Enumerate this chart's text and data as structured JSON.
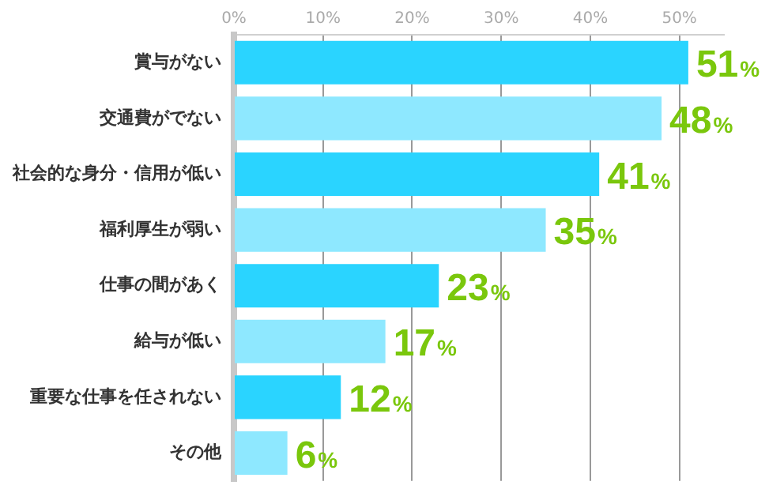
{
  "chart_data": {
    "type": "bar",
    "orientation": "horizontal",
    "categories": [
      "賞与がない",
      "交通費がでない",
      "社会的な身分・信用が低い",
      "福利厚生が弱い",
      "仕事の間があく",
      "給与が低い",
      "重要な仕事を任されない",
      "その他"
    ],
    "values": [
      51,
      48,
      41,
      35,
      23,
      17,
      12,
      6
    ],
    "colors": [
      "#2ad4ff",
      "#8ee8ff",
      "#2ad4ff",
      "#8ee8ff",
      "#2ad4ff",
      "#8ee8ff",
      "#2ad4ff",
      "#8ee8ff"
    ],
    "value_labels": [
      "51%",
      "48%",
      "41%",
      "35%",
      "23%",
      "17%",
      "12%",
      "6%"
    ],
    "xlim": [
      0,
      55
    ],
    "xticks": [
      {
        "value": 0,
        "label": "0%"
      },
      {
        "value": 10,
        "label": "10%"
      },
      {
        "value": 20,
        "label": "20%"
      },
      {
        "value": 30,
        "label": "30%"
      },
      {
        "value": 40,
        "label": "40%"
      },
      {
        "value": 50,
        "label": "50%"
      }
    ],
    "grid": "x",
    "legend": false
  }
}
